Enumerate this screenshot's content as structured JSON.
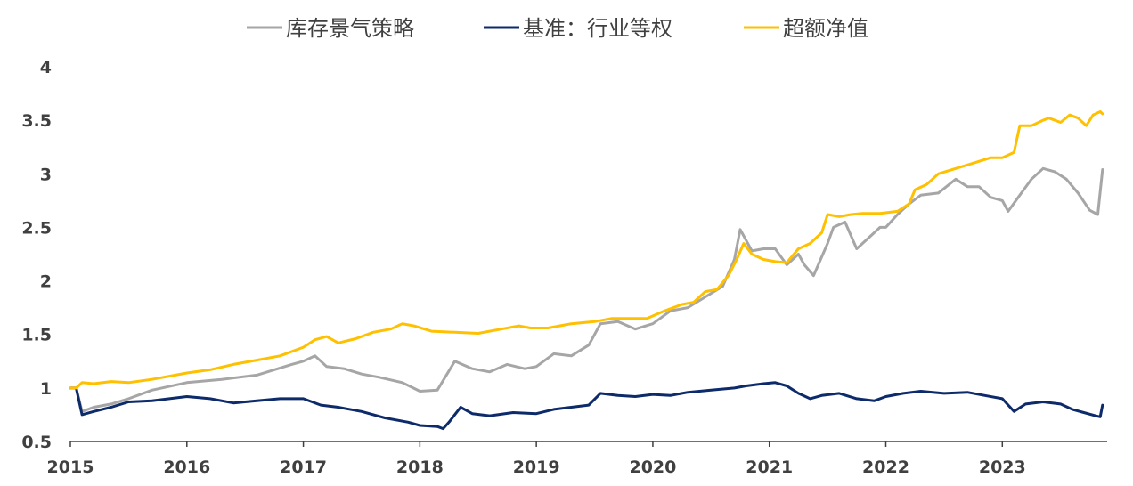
{
  "chart_data": {
    "type": "line",
    "title": "",
    "xlabel": "",
    "ylabel": "",
    "x_ticks": [
      "2015",
      "2016",
      "2017",
      "2018",
      "2019",
      "2020",
      "2021",
      "2022",
      "2023"
    ],
    "y_ticks": [
      "0.5",
      "1",
      "1.5",
      "2",
      "2.5",
      "3",
      "3.5",
      "4"
    ],
    "ylim": [
      0.5,
      4
    ],
    "xlim": [
      2015.0,
      2023.9
    ],
    "grid": false,
    "legend_position": "top-center",
    "series": [
      {
        "name": "库存景气策略",
        "color": "#a6a6a6",
        "points": [
          [
            2015.0,
            1.0
          ],
          [
            2015.05,
            1.0
          ],
          [
            2015.1,
            0.78
          ],
          [
            2015.2,
            0.82
          ],
          [
            2015.35,
            0.85
          ],
          [
            2015.5,
            0.9
          ],
          [
            2015.7,
            0.98
          ],
          [
            2016.0,
            1.05
          ],
          [
            2016.3,
            1.08
          ],
          [
            2016.6,
            1.12
          ],
          [
            2016.9,
            1.22
          ],
          [
            2017.0,
            1.25
          ],
          [
            2017.1,
            1.3
          ],
          [
            2017.2,
            1.2
          ],
          [
            2017.35,
            1.18
          ],
          [
            2017.5,
            1.13
          ],
          [
            2017.65,
            1.1
          ],
          [
            2017.85,
            1.05
          ],
          [
            2018.0,
            0.97
          ],
          [
            2018.15,
            0.98
          ],
          [
            2018.3,
            1.25
          ],
          [
            2018.45,
            1.18
          ],
          [
            2018.6,
            1.15
          ],
          [
            2018.75,
            1.22
          ],
          [
            2018.9,
            1.18
          ],
          [
            2019.0,
            1.2
          ],
          [
            2019.15,
            1.32
          ],
          [
            2019.3,
            1.3
          ],
          [
            2019.45,
            1.4
          ],
          [
            2019.55,
            1.6
          ],
          [
            2019.7,
            1.62
          ],
          [
            2019.85,
            1.55
          ],
          [
            2020.0,
            1.6
          ],
          [
            2020.15,
            1.72
          ],
          [
            2020.3,
            1.75
          ],
          [
            2020.45,
            1.85
          ],
          [
            2020.6,
            1.95
          ],
          [
            2020.7,
            2.2
          ],
          [
            2020.75,
            2.48
          ],
          [
            2020.85,
            2.28
          ],
          [
            2020.95,
            2.3
          ],
          [
            2021.05,
            2.3
          ],
          [
            2021.15,
            2.15
          ],
          [
            2021.25,
            2.25
          ],
          [
            2021.3,
            2.15
          ],
          [
            2021.38,
            2.05
          ],
          [
            2021.5,
            2.35
          ],
          [
            2021.55,
            2.5
          ],
          [
            2021.65,
            2.55
          ],
          [
            2021.75,
            2.3
          ],
          [
            2021.85,
            2.4
          ],
          [
            2021.95,
            2.5
          ],
          [
            2022.0,
            2.5
          ],
          [
            2022.1,
            2.62
          ],
          [
            2022.2,
            2.72
          ],
          [
            2022.3,
            2.8
          ],
          [
            2022.45,
            2.82
          ],
          [
            2022.6,
            2.95
          ],
          [
            2022.7,
            2.88
          ],
          [
            2022.8,
            2.88
          ],
          [
            2022.9,
            2.78
          ],
          [
            2023.0,
            2.75
          ],
          [
            2023.05,
            2.65
          ],
          [
            2023.15,
            2.8
          ],
          [
            2023.25,
            2.95
          ],
          [
            2023.35,
            3.05
          ],
          [
            2023.45,
            3.02
          ],
          [
            2023.55,
            2.95
          ],
          [
            2023.65,
            2.82
          ],
          [
            2023.75,
            2.66
          ],
          [
            2023.82,
            2.62
          ],
          [
            2023.86,
            3.04
          ]
        ]
      },
      {
        "name": "基准：行业等权",
        "color": "#0d2b6b",
        "points": [
          [
            2015.0,
            1.0
          ],
          [
            2015.05,
            1.0
          ],
          [
            2015.1,
            0.75
          ],
          [
            2015.2,
            0.78
          ],
          [
            2015.35,
            0.82
          ],
          [
            2015.5,
            0.87
          ],
          [
            2015.7,
            0.88
          ],
          [
            2016.0,
            0.92
          ],
          [
            2016.2,
            0.9
          ],
          [
            2016.4,
            0.86
          ],
          [
            2016.6,
            0.88
          ],
          [
            2016.8,
            0.9
          ],
          [
            2017.0,
            0.9
          ],
          [
            2017.15,
            0.84
          ],
          [
            2017.3,
            0.82
          ],
          [
            2017.5,
            0.78
          ],
          [
            2017.7,
            0.72
          ],
          [
            2017.9,
            0.68
          ],
          [
            2018.0,
            0.65
          ],
          [
            2018.15,
            0.64
          ],
          [
            2018.2,
            0.62
          ],
          [
            2018.25,
            0.68
          ],
          [
            2018.35,
            0.82
          ],
          [
            2018.45,
            0.76
          ],
          [
            2018.6,
            0.74
          ],
          [
            2018.8,
            0.77
          ],
          [
            2019.0,
            0.76
          ],
          [
            2019.15,
            0.8
          ],
          [
            2019.3,
            0.82
          ],
          [
            2019.45,
            0.84
          ],
          [
            2019.55,
            0.95
          ],
          [
            2019.7,
            0.93
          ],
          [
            2019.85,
            0.92
          ],
          [
            2020.0,
            0.94
          ],
          [
            2020.15,
            0.93
          ],
          [
            2020.3,
            0.96
          ],
          [
            2020.5,
            0.98
          ],
          [
            2020.7,
            1.0
          ],
          [
            2020.8,
            1.02
          ],
          [
            2020.95,
            1.04
          ],
          [
            2021.05,
            1.05
          ],
          [
            2021.15,
            1.02
          ],
          [
            2021.25,
            0.95
          ],
          [
            2021.35,
            0.9
          ],
          [
            2021.45,
            0.93
          ],
          [
            2021.6,
            0.95
          ],
          [
            2021.75,
            0.9
          ],
          [
            2021.9,
            0.88
          ],
          [
            2022.0,
            0.92
          ],
          [
            2022.15,
            0.95
          ],
          [
            2022.3,
            0.97
          ],
          [
            2022.5,
            0.95
          ],
          [
            2022.7,
            0.96
          ],
          [
            2022.85,
            0.93
          ],
          [
            2023.0,
            0.9
          ],
          [
            2023.1,
            0.78
          ],
          [
            2023.2,
            0.85
          ],
          [
            2023.35,
            0.87
          ],
          [
            2023.5,
            0.85
          ],
          [
            2023.6,
            0.8
          ],
          [
            2023.7,
            0.77
          ],
          [
            2023.8,
            0.74
          ],
          [
            2023.84,
            0.73
          ],
          [
            2023.86,
            0.84
          ]
        ]
      },
      {
        "name": "超额净值",
        "color": "#ffc000",
        "points": [
          [
            2015.0,
            1.0
          ],
          [
            2015.05,
            1.0
          ],
          [
            2015.1,
            1.05
          ],
          [
            2015.2,
            1.04
          ],
          [
            2015.35,
            1.06
          ],
          [
            2015.5,
            1.05
          ],
          [
            2015.7,
            1.08
          ],
          [
            2016.0,
            1.14
          ],
          [
            2016.2,
            1.17
          ],
          [
            2016.4,
            1.22
          ],
          [
            2016.6,
            1.26
          ],
          [
            2016.8,
            1.3
          ],
          [
            2017.0,
            1.38
          ],
          [
            2017.1,
            1.45
          ],
          [
            2017.2,
            1.48
          ],
          [
            2017.3,
            1.42
          ],
          [
            2017.45,
            1.46
          ],
          [
            2017.6,
            1.52
          ],
          [
            2017.75,
            1.55
          ],
          [
            2017.85,
            1.6
          ],
          [
            2017.95,
            1.58
          ],
          [
            2018.1,
            1.53
          ],
          [
            2018.3,
            1.52
          ],
          [
            2018.5,
            1.51
          ],
          [
            2018.7,
            1.55
          ],
          [
            2018.85,
            1.58
          ],
          [
            2018.95,
            1.56
          ],
          [
            2019.1,
            1.56
          ],
          [
            2019.3,
            1.6
          ],
          [
            2019.5,
            1.62
          ],
          [
            2019.65,
            1.65
          ],
          [
            2019.8,
            1.65
          ],
          [
            2019.95,
            1.65
          ],
          [
            2020.1,
            1.72
          ],
          [
            2020.25,
            1.78
          ],
          [
            2020.35,
            1.8
          ],
          [
            2020.45,
            1.9
          ],
          [
            2020.55,
            1.92
          ],
          [
            2020.65,
            2.05
          ],
          [
            2020.72,
            2.2
          ],
          [
            2020.78,
            2.35
          ],
          [
            2020.85,
            2.25
          ],
          [
            2020.95,
            2.2
          ],
          [
            2021.05,
            2.18
          ],
          [
            2021.15,
            2.17
          ],
          [
            2021.25,
            2.3
          ],
          [
            2021.35,
            2.35
          ],
          [
            2021.45,
            2.45
          ],
          [
            2021.5,
            2.62
          ],
          [
            2021.6,
            2.6
          ],
          [
            2021.7,
            2.62
          ],
          [
            2021.8,
            2.63
          ],
          [
            2021.95,
            2.63
          ],
          [
            2022.1,
            2.65
          ],
          [
            2022.2,
            2.72
          ],
          [
            2022.25,
            2.85
          ],
          [
            2022.35,
            2.9
          ],
          [
            2022.45,
            3.0
          ],
          [
            2022.6,
            3.05
          ],
          [
            2022.75,
            3.1
          ],
          [
            2022.9,
            3.15
          ],
          [
            2023.0,
            3.15
          ],
          [
            2023.1,
            3.2
          ],
          [
            2023.15,
            3.45
          ],
          [
            2023.25,
            3.45
          ],
          [
            2023.35,
            3.5
          ],
          [
            2023.4,
            3.52
          ],
          [
            2023.5,
            3.48
          ],
          [
            2023.58,
            3.55
          ],
          [
            2023.65,
            3.52
          ],
          [
            2023.72,
            3.45
          ],
          [
            2023.78,
            3.55
          ],
          [
            2023.84,
            3.58
          ],
          [
            2023.86,
            3.56
          ]
        ]
      }
    ]
  }
}
